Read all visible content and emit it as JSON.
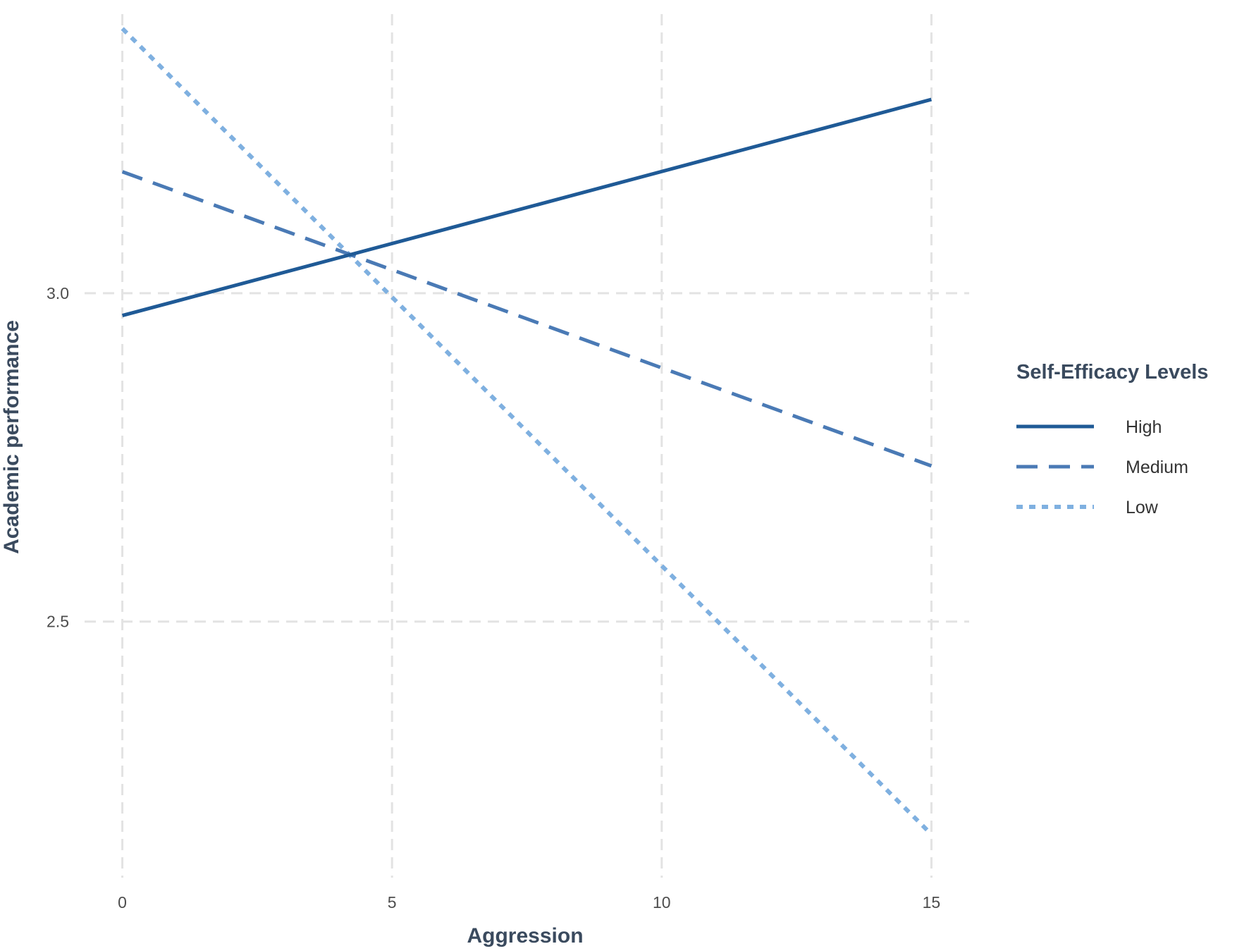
{
  "chart_data": {
    "type": "line",
    "title": "",
    "xlabel": "Aggression",
    "ylabel": "Academic performance",
    "x": [
      0,
      15
    ],
    "xticks": [
      0,
      5,
      10,
      15
    ],
    "xtick_labels": [
      "0",
      "5",
      "10",
      "15"
    ],
    "yticks": [
      2.5,
      3.0
    ],
    "ytick_labels": [
      "2.5",
      "3.0"
    ],
    "xlim": [
      -0.7,
      15.7
    ],
    "ylim": [
      2.11,
      3.425
    ],
    "grid": true,
    "legend": {
      "title": "Self-Efficacy Levels",
      "position": "right"
    },
    "series": [
      {
        "name": "High",
        "x": [
          0,
          15
        ],
        "values": [
          2.966,
          3.295
        ],
        "color": "#1f5a96",
        "line_style": "solid"
      },
      {
        "name": "Medium",
        "x": [
          0,
          15
        ],
        "values": [
          3.185,
          2.737
        ],
        "color": "#4a7ab5",
        "line_style": "dashed"
      },
      {
        "name": "Low",
        "x": [
          0,
          15
        ],
        "values": [
          3.403,
          2.176
        ],
        "color": "#7fb0e0",
        "line_style": "dotted"
      }
    ]
  }
}
